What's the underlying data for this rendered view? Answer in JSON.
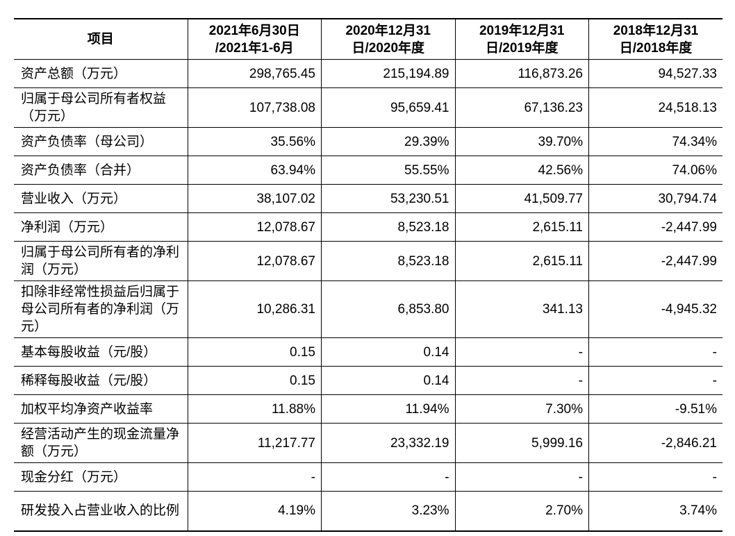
{
  "table": {
    "headers": [
      {
        "line1": "项目",
        "line2": ""
      },
      {
        "line1": "2021年6月30日",
        "line2": "/2021年1-6月"
      },
      {
        "line1": "2020年12月31",
        "line2": "日/2020年度"
      },
      {
        "line1": "2019年12月31",
        "line2": "日/2019年度"
      },
      {
        "line1": "2018年12月31",
        "line2": "日/2018年度"
      }
    ],
    "rows": [
      {
        "label": "资产总额（万元）",
        "values": [
          "298,765.45",
          "215,194.89",
          "116,873.26",
          "94,527.33"
        ]
      },
      {
        "label": "归属于母公司所有者权益（万元）",
        "values": [
          "107,738.08",
          "95,659.41",
          "67,136.23",
          "24,518.13"
        ]
      },
      {
        "label": "资产负债率（母公司）",
        "values": [
          "35.56%",
          "29.39%",
          "39.70%",
          "74.34%"
        ]
      },
      {
        "label": "资产负债率（合并）",
        "values": [
          "63.94%",
          "55.55%",
          "42.56%",
          "74.06%"
        ]
      },
      {
        "label": "营业收入（万元）",
        "values": [
          "38,107.02",
          "53,230.51",
          "41,509.77",
          "30,794.74"
        ]
      },
      {
        "label": "净利润（万元）",
        "values": [
          "12,078.67",
          "8,523.18",
          "2,615.11",
          "-2,447.99"
        ]
      },
      {
        "label": "归属于母公司所有者的净利润（万元）",
        "values": [
          "12,078.67",
          "8,523.18",
          "2,615.11",
          "-2,447.99"
        ]
      },
      {
        "label": "扣除非经常性损益后归属于母公司所有者的净利润（万元）",
        "values": [
          "10,286.31",
          "6,853.80",
          "341.13",
          "-4,945.32"
        ]
      },
      {
        "label": "基本每股收益（元/股）",
        "values": [
          "0.15",
          "0.14",
          "-",
          "-"
        ]
      },
      {
        "label": "稀释每股收益（元/股）",
        "values": [
          "0.15",
          "0.14",
          "-",
          "-"
        ]
      },
      {
        "label": "加权平均净资产收益率",
        "values": [
          "11.88%",
          "11.94%",
          "7.30%",
          "-9.51%"
        ]
      },
      {
        "label": "经营活动产生的现金流量净额（万元）",
        "values": [
          "11,217.77",
          "23,332.19",
          "5,999.16",
          "-2,846.21"
        ]
      },
      {
        "label": "现金分红（万元）",
        "values": [
          "-",
          "-",
          "-",
          "-"
        ]
      },
      {
        "label": "研发投入占营业收入的比例",
        "values": [
          "4.19%",
          "3.23%",
          "2.70%",
          "3.74%"
        ]
      }
    ]
  }
}
